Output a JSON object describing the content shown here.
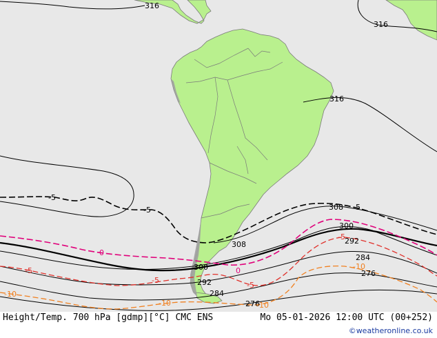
{
  "map": {
    "background_color": "#e8e8e8",
    "land_color": "#b9f08e",
    "land_border_color": "#7a7a7a",
    "andes_color": "#a0a0a0",
    "height_contours": {
      "color": "#000000",
      "labels": [
        "316",
        "316",
        "316",
        "308",
        "308",
        "300",
        "300",
        "292",
        "292",
        "284",
        "284",
        "276",
        "276"
      ]
    },
    "temperature_contours": [
      {
        "label": "-5",
        "color": "#000000"
      },
      {
        "label": "0",
        "color": "#e0007a"
      },
      {
        "label": "-5",
        "color": "#e0302a"
      },
      {
        "label": "-10",
        "color": "#f08020"
      }
    ],
    "temp_labels": {
      "neg5_black_a": "-5",
      "neg5_black_b": "-5",
      "neg5_black_c": "-5",
      "zero_a": "0",
      "zero_b": "0",
      "neg5_red_a": "-5",
      "neg5_red_b": "-5",
      "neg5_red_c": "-5",
      "neg5_red_d": "-5",
      "neg10_a": "-10",
      "neg10_b": "-10",
      "neg10_c": "-10",
      "neg10_d": "-10"
    }
  },
  "footer": {
    "title": "Height/Temp. 700 hPa [gdmp][°C] CMC ENS",
    "datetime": "Mo 05-01-2026 12:00 UTC (00+252)",
    "credit": "©weatheronline.co.uk"
  }
}
